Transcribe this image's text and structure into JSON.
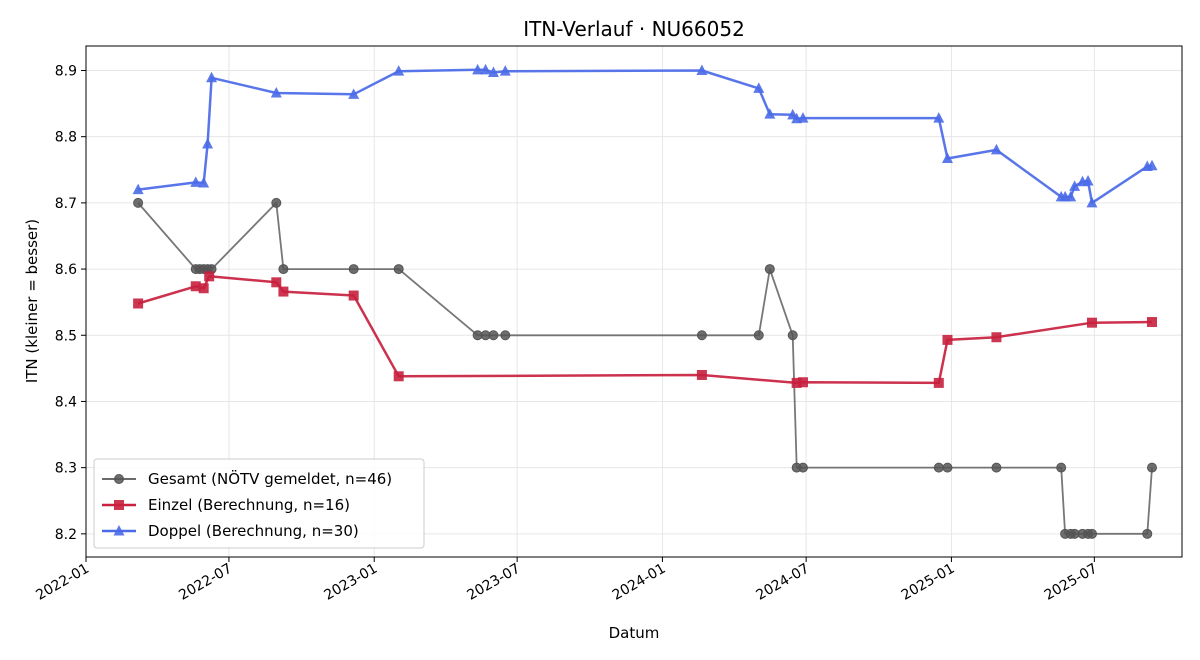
{
  "chart_data": {
    "type": "line",
    "title": "ITN-Verlauf · NU66052",
    "xlabel": "Datum",
    "ylabel": "ITN  (kleiner = besser)",
    "x_axis_type": "date",
    "xlim": [
      "2022-01-01",
      "2025-10-20"
    ],
    "ylim": [
      8.165,
      8.937
    ],
    "x_ticks": [
      "2022-01-01",
      "2022-07-01",
      "2023-01-01",
      "2023-07-01",
      "2024-01-01",
      "2024-07-01",
      "2025-01-01",
      "2025-07-01"
    ],
    "x_tick_labels": [
      "2022-01",
      "2022-07",
      "2023-01",
      "2023-07",
      "2024-01",
      "2024-07",
      "2025-01",
      "2025-07"
    ],
    "y_ticks": [
      8.2,
      8.3,
      8.4,
      8.5,
      8.6,
      8.7,
      8.8,
      8.9
    ],
    "y_tick_labels": [
      "8.2",
      "8.3",
      "8.4",
      "8.5",
      "8.6",
      "8.7",
      "8.8",
      "8.9"
    ],
    "grid": true,
    "legend_position": "lower-left",
    "series": [
      {
        "name": "Gesamt (NÖTV gemeldet, n=46)",
        "color": "#555555",
        "marker": "circle",
        "points": [
          {
            "x": "2022-03-08",
            "y": 8.7
          },
          {
            "x": "2022-05-20",
            "y": 8.6
          },
          {
            "x": "2022-05-25",
            "y": 8.6
          },
          {
            "x": "2022-05-30",
            "y": 8.6
          },
          {
            "x": "2022-06-04",
            "y": 8.6
          },
          {
            "x": "2022-06-09",
            "y": 8.6
          },
          {
            "x": "2022-08-30",
            "y": 8.7
          },
          {
            "x": "2022-09-08",
            "y": 8.6
          },
          {
            "x": "2022-12-06",
            "y": 8.6
          },
          {
            "x": "2023-02-01",
            "y": 8.6
          },
          {
            "x": "2023-05-12",
            "y": 8.5
          },
          {
            "x": "2023-05-22",
            "y": 8.5
          },
          {
            "x": "2023-06-01",
            "y": 8.5
          },
          {
            "x": "2023-06-16",
            "y": 8.5
          },
          {
            "x": "2024-02-20",
            "y": 8.5
          },
          {
            "x": "2024-05-02",
            "y": 8.5
          },
          {
            "x": "2024-05-16",
            "y": 8.6
          },
          {
            "x": "2024-06-14",
            "y": 8.5
          },
          {
            "x": "2024-06-19",
            "y": 8.3
          },
          {
            "x": "2024-06-27",
            "y": 8.3
          },
          {
            "x": "2024-12-16",
            "y": 8.3
          },
          {
            "x": "2024-12-27",
            "y": 8.3
          },
          {
            "x": "2025-02-27",
            "y": 8.3
          },
          {
            "x": "2025-05-20",
            "y": 8.3
          },
          {
            "x": "2025-05-25",
            "y": 8.2
          },
          {
            "x": "2025-06-01",
            "y": 8.2
          },
          {
            "x": "2025-06-06",
            "y": 8.2
          },
          {
            "x": "2025-06-16",
            "y": 8.2
          },
          {
            "x": "2025-06-23",
            "y": 8.2
          },
          {
            "x": "2025-06-28",
            "y": 8.2
          },
          {
            "x": "2025-09-06",
            "y": 8.2
          },
          {
            "x": "2025-09-12",
            "y": 8.3
          }
        ]
      },
      {
        "name": "Einzel (Berechnung, n=16)",
        "color": "#c8203e",
        "marker": "square",
        "points": [
          {
            "x": "2022-03-08",
            "y": 8.548
          },
          {
            "x": "2022-05-20",
            "y": 8.574
          },
          {
            "x": "2022-05-30",
            "y": 8.571
          },
          {
            "x": "2022-06-06",
            "y": 8.589
          },
          {
            "x": "2022-08-30",
            "y": 8.58
          },
          {
            "x": "2022-09-08",
            "y": 8.566
          },
          {
            "x": "2022-12-06",
            "y": 8.56
          },
          {
            "x": "2023-02-01",
            "y": 8.438
          },
          {
            "x": "2024-02-20",
            "y": 8.44
          },
          {
            "x": "2024-06-19",
            "y": 8.428
          },
          {
            "x": "2024-06-27",
            "y": 8.429
          },
          {
            "x": "2024-12-16",
            "y": 8.428
          },
          {
            "x": "2024-12-27",
            "y": 8.493
          },
          {
            "x": "2025-02-27",
            "y": 8.497
          },
          {
            "x": "2025-06-28",
            "y": 8.519
          },
          {
            "x": "2025-09-12",
            "y": 8.52
          }
        ]
      },
      {
        "name": "Doppel (Berechnung, n=30)",
        "color": "#4a6ae8",
        "marker": "triangle",
        "points": [
          {
            "x": "2022-03-08",
            "y": 8.72
          },
          {
            "x": "2022-05-20",
            "y": 8.731
          },
          {
            "x": "2022-05-30",
            "y": 8.73
          },
          {
            "x": "2022-06-04",
            "y": 8.789
          },
          {
            "x": "2022-06-09",
            "y": 8.889
          },
          {
            "x": "2022-08-30",
            "y": 8.866
          },
          {
            "x": "2022-12-06",
            "y": 8.864
          },
          {
            "x": "2023-02-01",
            "y": 8.899
          },
          {
            "x": "2023-05-12",
            "y": 8.901
          },
          {
            "x": "2023-05-22",
            "y": 8.901
          },
          {
            "x": "2023-06-01",
            "y": 8.897
          },
          {
            "x": "2023-06-16",
            "y": 8.899
          },
          {
            "x": "2024-02-20",
            "y": 8.9
          },
          {
            "x": "2024-05-02",
            "y": 8.873
          },
          {
            "x": "2024-05-16",
            "y": 8.834
          },
          {
            "x": "2024-06-14",
            "y": 8.833
          },
          {
            "x": "2024-06-19",
            "y": 8.827
          },
          {
            "x": "2024-06-27",
            "y": 8.828
          },
          {
            "x": "2024-12-16",
            "y": 8.828
          },
          {
            "x": "2024-12-27",
            "y": 8.767
          },
          {
            "x": "2025-02-27",
            "y": 8.78
          },
          {
            "x": "2025-05-20",
            "y": 8.709
          },
          {
            "x": "2025-05-25",
            "y": 8.709
          },
          {
            "x": "2025-06-01",
            "y": 8.709
          },
          {
            "x": "2025-06-06",
            "y": 8.725
          },
          {
            "x": "2025-06-16",
            "y": 8.732
          },
          {
            "x": "2025-06-23",
            "y": 8.733
          },
          {
            "x": "2025-06-28",
            "y": 8.7
          },
          {
            "x": "2025-09-06",
            "y": 8.755
          },
          {
            "x": "2025-09-12",
            "y": 8.756
          }
        ]
      }
    ]
  }
}
